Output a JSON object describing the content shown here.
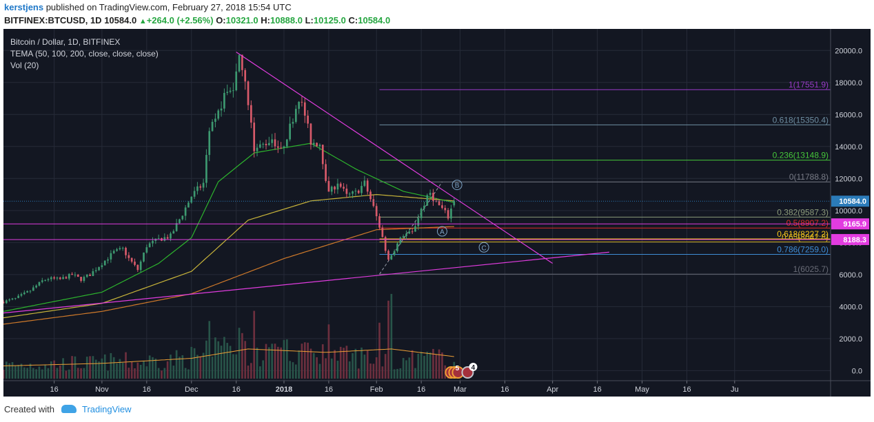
{
  "header": {
    "author": "kerstjens",
    "published": " published on TradingView.com, February 27, 2018 15:54 UTC",
    "symbol": "BITFINEX:BTCUSD, 1D",
    "last": "10584.0",
    "change": "+264.0 (+2.56%)",
    "o_label": "O:",
    "o": "10321.0",
    "h_label": "H:",
    "h": "10888.0",
    "l_label": "L:",
    "l": "10125.0",
    "c_label": "C:",
    "c": "10584.0"
  },
  "legend": {
    "line1": "Bitcoin / Dollar, 1D, BITFINEX",
    "line2": "TEMA (50, 100, 200, close, close, close)",
    "line3": "Vol (20)"
  },
  "footer": {
    "created_with": "Created with",
    "brand": "TradingView"
  },
  "colors": {
    "background": "#131722",
    "grid": "#262b38",
    "up": "#3d9970",
    "down": "#d85a6a",
    "vol_up": "#285449",
    "vol_down": "#6c2f3e",
    "tema50": "#2db52d",
    "tema100": "#c8b43a",
    "tema200": "#d07a2a",
    "trend": "#e23ce0",
    "vol_ma": "#f0a035",
    "price_label": "#2b7bb9"
  },
  "chart_data": {
    "type": "candlestick",
    "y_axis": {
      "range": [
        -500,
        21000
      ],
      "ticks": [
        0.0,
        2000.0,
        4000.0,
        6000.0,
        8000.0,
        10000.0,
        12000.0,
        14000.0,
        16000.0,
        18000.0,
        20000.0
      ]
    },
    "x_axis": {
      "range": [
        "2017-09-29",
        "2018-07-02"
      ],
      "ticks": [
        {
          "date": "2017-10-16",
          "label": "16"
        },
        {
          "date": "2017-11-01",
          "label": "Nov"
        },
        {
          "date": "2017-11-16",
          "label": "16"
        },
        {
          "date": "2017-12-01",
          "label": "Dec"
        },
        {
          "date": "2017-12-16",
          "label": "16"
        },
        {
          "date": "2018-01-01",
          "label": "2018"
        },
        {
          "date": "2018-01-16",
          "label": "16"
        },
        {
          "date": "2018-02-01",
          "label": "Feb"
        },
        {
          "date": "2018-02-16",
          "label": "16"
        },
        {
          "date": "2018-03-01",
          "label": "Mar"
        },
        {
          "date": "2018-03-16",
          "label": "16"
        },
        {
          "date": "2018-04-01",
          "label": "Apr"
        },
        {
          "date": "2018-04-16",
          "label": "16"
        },
        {
          "date": "2018-05-01",
          "label": "May"
        },
        {
          "date": "2018-05-16",
          "label": "16"
        },
        {
          "date": "2018-06-01",
          "label": "Ju"
        }
      ]
    },
    "close_keypoints": [
      [
        "2017-09-29",
        4300
      ],
      [
        "2017-10-03",
        4500
      ],
      [
        "2017-10-08",
        5000
      ],
      [
        "2017-10-12",
        5600
      ],
      [
        "2017-10-14",
        5750
      ],
      [
        "2017-10-18",
        5700
      ],
      [
        "2017-10-22",
        6000
      ],
      [
        "2017-10-25",
        5700
      ],
      [
        "2017-10-28",
        6000
      ],
      [
        "2017-11-01",
        6700
      ],
      [
        "2017-11-05",
        7400
      ],
      [
        "2017-11-08",
        7600
      ],
      [
        "2017-11-10",
        7000
      ],
      [
        "2017-11-13",
        6300
      ],
      [
        "2017-11-16",
        7800
      ],
      [
        "2017-11-20",
        8200
      ],
      [
        "2017-11-24",
        8400
      ],
      [
        "2017-11-28",
        9800
      ],
      [
        "2017-12-01",
        10900
      ],
      [
        "2017-12-05",
        11700
      ],
      [
        "2017-12-07",
        15000
      ],
      [
        "2017-12-09",
        15500
      ],
      [
        "2017-12-12",
        17200
      ],
      [
        "2017-12-15",
        17700
      ],
      [
        "2017-12-17",
        19400
      ],
      [
        "2017-12-19",
        18300
      ],
      [
        "2017-12-22",
        13800
      ],
      [
        "2017-12-25",
        14100
      ],
      [
        "2017-12-28",
        14500
      ],
      [
        "2017-12-31",
        13700
      ],
      [
        "2018-01-03",
        15200
      ],
      [
        "2018-01-06",
        17100
      ],
      [
        "2018-01-08",
        16000
      ],
      [
        "2018-01-10",
        14300
      ],
      [
        "2018-01-13",
        14200
      ],
      [
        "2018-01-16",
        11000
      ],
      [
        "2018-01-19",
        11800
      ],
      [
        "2018-01-22",
        10900
      ],
      [
        "2018-01-25",
        11100
      ],
      [
        "2018-01-28",
        11700
      ],
      [
        "2018-01-31",
        10200
      ],
      [
        "2018-02-02",
        9000
      ],
      [
        "2018-02-05",
        6900
      ],
      [
        "2018-02-07",
        7600
      ],
      [
        "2018-02-10",
        8500
      ],
      [
        "2018-02-13",
        8600
      ],
      [
        "2018-02-16",
        10100
      ],
      [
        "2018-02-19",
        11100
      ],
      [
        "2018-02-21",
        10500
      ],
      [
        "2018-02-23",
        10100
      ],
      [
        "2018-02-25",
        9600
      ],
      [
        "2018-02-27",
        10584
      ]
    ],
    "volume_range": [
      0,
      5200
    ],
    "tema50_keypoints": [
      [
        "2017-09-29",
        3700
      ],
      [
        "2017-11-01",
        4900
      ],
      [
        "2017-11-20",
        6700
      ],
      [
        "2017-12-01",
        8300
      ],
      [
        "2017-12-10",
        11800
      ],
      [
        "2017-12-22",
        13600
      ],
      [
        "2018-01-10",
        14200
      ],
      [
        "2018-01-25",
        12600
      ],
      [
        "2018-02-10",
        11200
      ],
      [
        "2018-02-27",
        10500
      ]
    ],
    "tema100_keypoints": [
      [
        "2017-09-29",
        3300
      ],
      [
        "2017-11-01",
        4200
      ],
      [
        "2017-12-01",
        6200
      ],
      [
        "2017-12-20",
        9400
      ],
      [
        "2018-01-10",
        10600
      ],
      [
        "2018-02-01",
        11000
      ],
      [
        "2018-02-27",
        10600
      ]
    ],
    "tema200_keypoints": [
      [
        "2017-09-29",
        2900
      ],
      [
        "2017-11-01",
        3700
      ],
      [
        "2017-12-01",
        4800
      ],
      [
        "2018-01-01",
        7000
      ],
      [
        "2018-02-01",
        8800
      ],
      [
        "2018-02-27",
        9000
      ]
    ],
    "volume_ma_keypoints": [
      [
        "2017-09-29",
        750
      ],
      [
        "2017-11-01",
        900
      ],
      [
        "2017-12-01",
        1200
      ],
      [
        "2017-12-20",
        1750
      ],
      [
        "2018-01-15",
        1550
      ],
      [
        "2018-02-06",
        1750
      ],
      [
        "2018-02-27",
        1300
      ]
    ],
    "fibonacci": [
      {
        "label": "1(17551.9)",
        "value": 17551.9,
        "color": "#9b3bc9"
      },
      {
        "label": "0.618(15350.4)",
        "value": 15350.4,
        "color": "#6f8fa3"
      },
      {
        "label": "0.236(13148.9)",
        "value": 13148.9,
        "color": "#46c83a"
      },
      {
        "label": "0(11788.8)",
        "value": 11788.8,
        "color": "#787b86"
      },
      {
        "label": "0.382(9587.3)",
        "value": 9587.3,
        "color": "#8c9a7a"
      },
      {
        "label": "0.5(8907.2)",
        "value": 8907.2,
        "color": "#e02a2a"
      },
      {
        "label": "0.618(8227.2)",
        "value": 8227.2,
        "color": "#f5c518"
      },
      {
        "label": "0.65(8042.8)",
        "value": 8042.8,
        "color": "#d6b020"
      },
      {
        "label": "0.786(7259.0)",
        "value": 7259.0,
        "color": "#3f8ed8"
      },
      {
        "label": "1(6025.7)",
        "value": 6025.7,
        "color": "#6a6d78"
      }
    ],
    "horizontal_lines": [
      {
        "value": 9165.9,
        "label": "9165.9",
        "color": "#e23ce0"
      },
      {
        "value": 8188.3,
        "label": "8188.3",
        "color": "#e23ce0"
      }
    ],
    "trendlines": [
      {
        "from": [
          "2017-12-16",
          19900
        ],
        "to": [
          "2018-04-01",
          6700
        ],
        "color": "#e23ce0"
      },
      {
        "from": [
          "2017-09-29",
          3600
        ],
        "to": [
          "2018-04-20",
          7400
        ],
        "color": "#e23ce0"
      }
    ],
    "wave_marks": [
      {
        "label": "A",
        "date": "2018-02-23",
        "value": 8700
      },
      {
        "label": "B",
        "date": "2018-02-28",
        "value": 11600
      },
      {
        "label": "C",
        "date": "2018-03-09",
        "value": 7700
      }
    ],
    "last_price": {
      "value": 10584.0,
      "label": "10584.0"
    },
    "event_badges": [
      {
        "label": "5"
      },
      {
        "label": "4"
      }
    ]
  }
}
